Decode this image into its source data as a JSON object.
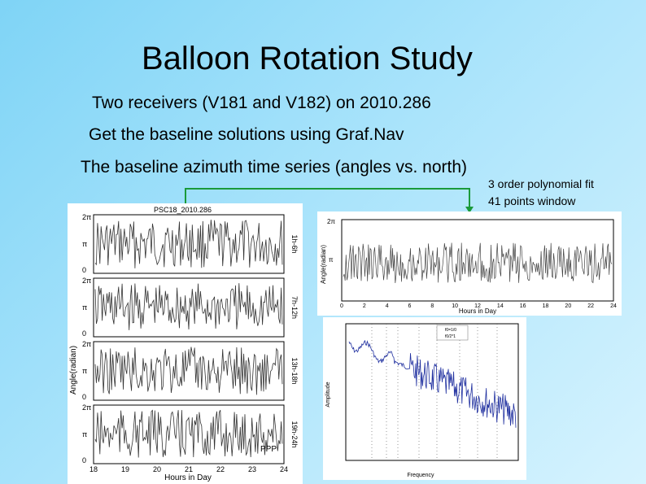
{
  "slide": {
    "title": "Balloon Rotation Study",
    "bullets": [
      "Two receivers (V181 and V182) on 2010.286",
      "Get the baseline solutions using Graf.Nav",
      "The baseline azimuth time series (angles vs. north)"
    ],
    "note_lines": [
      "3 order polynomial fit",
      "41 points window"
    ]
  },
  "left_plot": {
    "title": "PSC18_2010.286",
    "ylabel": "Angle(radian)",
    "xlabel": "Hours in Day",
    "x_ticks": [
      "18",
      "19",
      "20",
      "21",
      "22",
      "23",
      "24"
    ],
    "y_ticks": [
      "2π",
      "π",
      "0"
    ],
    "strip_labels": [
      "1h-6h",
      "7h-12h",
      "13h-18h",
      "19h-24h"
    ],
    "legend_label": "PPP"
  },
  "right_plot": {
    "ylabel": "Angle(radian)",
    "xlabel": "Hours in Day",
    "x_ticks": [
      "0",
      "2",
      "4",
      "6",
      "8",
      "10",
      "12",
      "14",
      "16",
      "18",
      "20",
      "22",
      "24"
    ],
    "y_ticks": [
      "2π",
      "π"
    ]
  },
  "spectrum_plot": {
    "ylabel": "Amplitude",
    "xlabel": "Frequency",
    "legend": [
      "f0=1/0",
      "f0/2*1"
    ],
    "series_colors": [
      "#1f2f9f",
      "#1010c0"
    ]
  },
  "colors": {
    "connector": "#1a9a3a",
    "trace": "#333333"
  }
}
